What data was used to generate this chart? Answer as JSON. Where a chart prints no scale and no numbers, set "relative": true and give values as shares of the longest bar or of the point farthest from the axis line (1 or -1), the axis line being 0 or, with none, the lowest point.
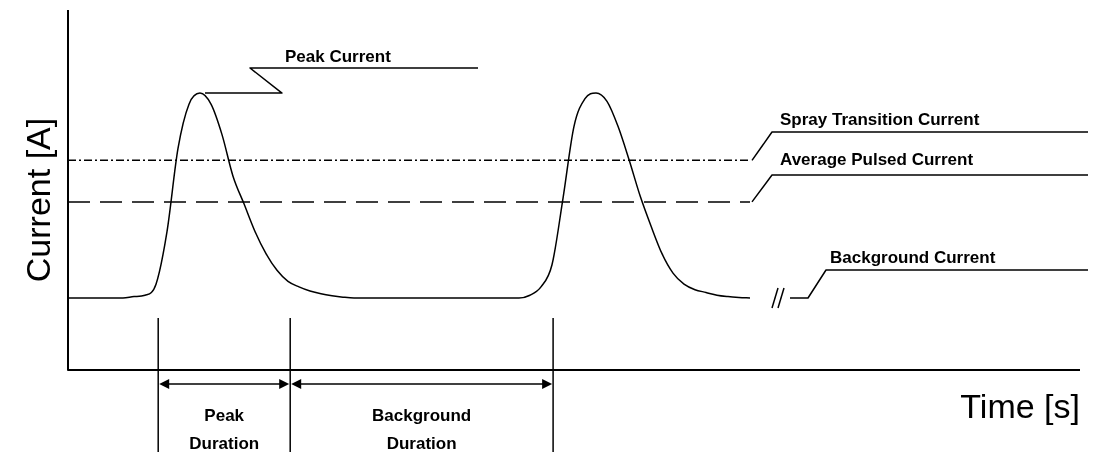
{
  "chart_data": {
    "type": "line",
    "relative": true,
    "xlabel": "Time [s]",
    "ylabel": "Current [A]",
    "color": "#000000",
    "legend": false,
    "marker": "none",
    "line_style": "solid",
    "categories": [
      null,
      null,
      null,
      null,
      null,
      null,
      null,
      null,
      null,
      null,
      null,
      null,
      null,
      null,
      null,
      null,
      null,
      null,
      null,
      null,
      null,
      null,
      null,
      null,
      null,
      null,
      null,
      null,
      null,
      null,
      null,
      null,
      null,
      null,
      null,
      null,
      null,
      null,
      null,
      null,
      null,
      null,
      null,
      null,
      null,
      null,
      null,
      null,
      null,
      null,
      null,
      null,
      null,
      null,
      null,
      null,
      null,
      null,
      null,
      null,
      null,
      null,
      null,
      null,
      null,
      null,
      null,
      null,
      null,
      null,
      null,
      null,
      null,
      null,
      null,
      null,
      null,
      null,
      null,
      null,
      null,
      null,
      null,
      null,
      null,
      null,
      null,
      null,
      null,
      null,
      null,
      null,
      null
    ],
    "values": [
      0.26,
      0.26,
      0.26,
      0.26,
      0.26,
      0.26,
      0.265,
      0.27,
      0.31,
      0.5,
      0.8,
      0.96,
      1,
      0.96,
      0.85,
      0.7,
      0.6,
      0.5,
      0.42,
      0.36,
      0.32,
      0.3,
      0.285,
      0.275,
      0.268,
      0.263,
      0.26,
      0.26,
      0.26,
      0.26,
      0.26,
      0.26,
      0.26,
      0.26,
      0.26,
      0.26,
      0.26,
      0.26,
      0.26,
      0.26,
      0.26,
      0.26,
      0.27,
      0.3,
      0.38,
      0.62,
      0.88,
      0.98,
      1,
      0.97,
      0.88,
      0.76,
      0.63,
      0.52,
      0.42,
      0.35,
      0.31,
      0.29,
      0.28,
      0.27,
      0.265,
      0.262,
      0.26,
      null,
      null,
      null,
      null,
      null,
      null,
      null,
      null,
      null,
      null,
      null,
      null,
      null,
      null,
      null,
      null,
      null,
      null,
      null,
      null,
      null,
      null,
      null,
      null,
      null,
      null,
      null,
      null,
      null,
      null
    ],
    "ref_lines": [
      {
        "axis": "y",
        "value": 0.757,
        "label": "Spray Transition Current",
        "line_style": "dotted",
        "color": "#000000"
      },
      {
        "axis": "y",
        "value": 0.607,
        "label": "Average Pulsed Current",
        "line_style": "dashed",
        "color": "#000000"
      }
    ],
    "annotations": [
      "Peak Current",
      "Background Current",
      "Peak Duration",
      "Background Duration"
    ]
  }
}
